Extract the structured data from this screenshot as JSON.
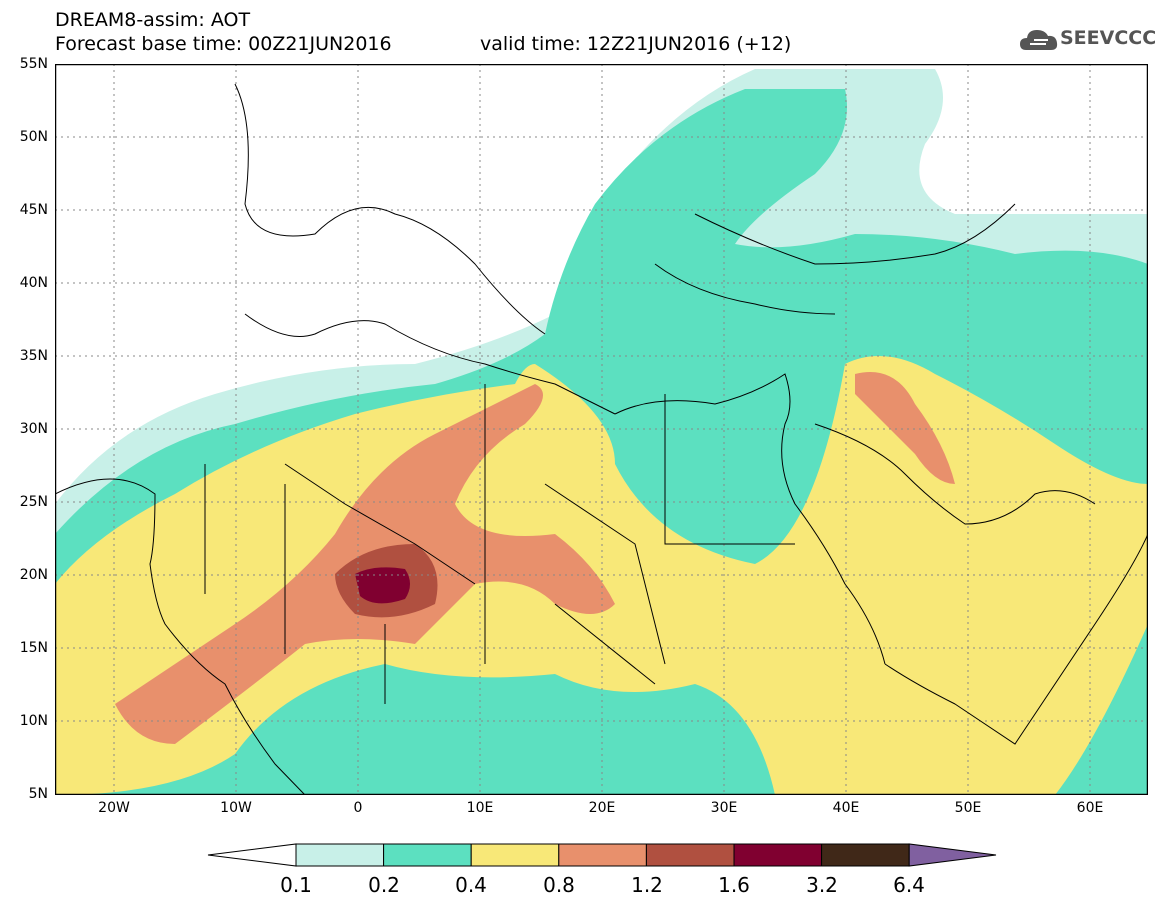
{
  "header": {
    "title": "DREAM8-assim: AOT",
    "base_time": "Forecast base time: 00Z21JUN2016",
    "valid_time": "valid time: 12Z21JUN2016 (+12)"
  },
  "logo": {
    "icon": "cloud-icon",
    "text": "SEEVCCC"
  },
  "map": {
    "lat_labels": [
      "55N",
      "50N",
      "45N",
      "40N",
      "35N",
      "30N",
      "25N",
      "20N",
      "15N",
      "10N",
      "5N"
    ],
    "lon_labels": [
      "20W",
      "10W",
      "0",
      "10E",
      "20E",
      "30E",
      "40E",
      "50E",
      "60E"
    ]
  },
  "colorbar": {
    "levels": [
      "0.1",
      "0.2",
      "0.4",
      "0.8",
      "1.2",
      "1.6",
      "3.2",
      "6.4"
    ],
    "colors": [
      "#ffffff",
      "#c8f0e8",
      "#5ce0c0",
      "#f8e878",
      "#e8906c",
      "#b05040",
      "#800030",
      "#402818",
      "#8060a0"
    ]
  }
}
